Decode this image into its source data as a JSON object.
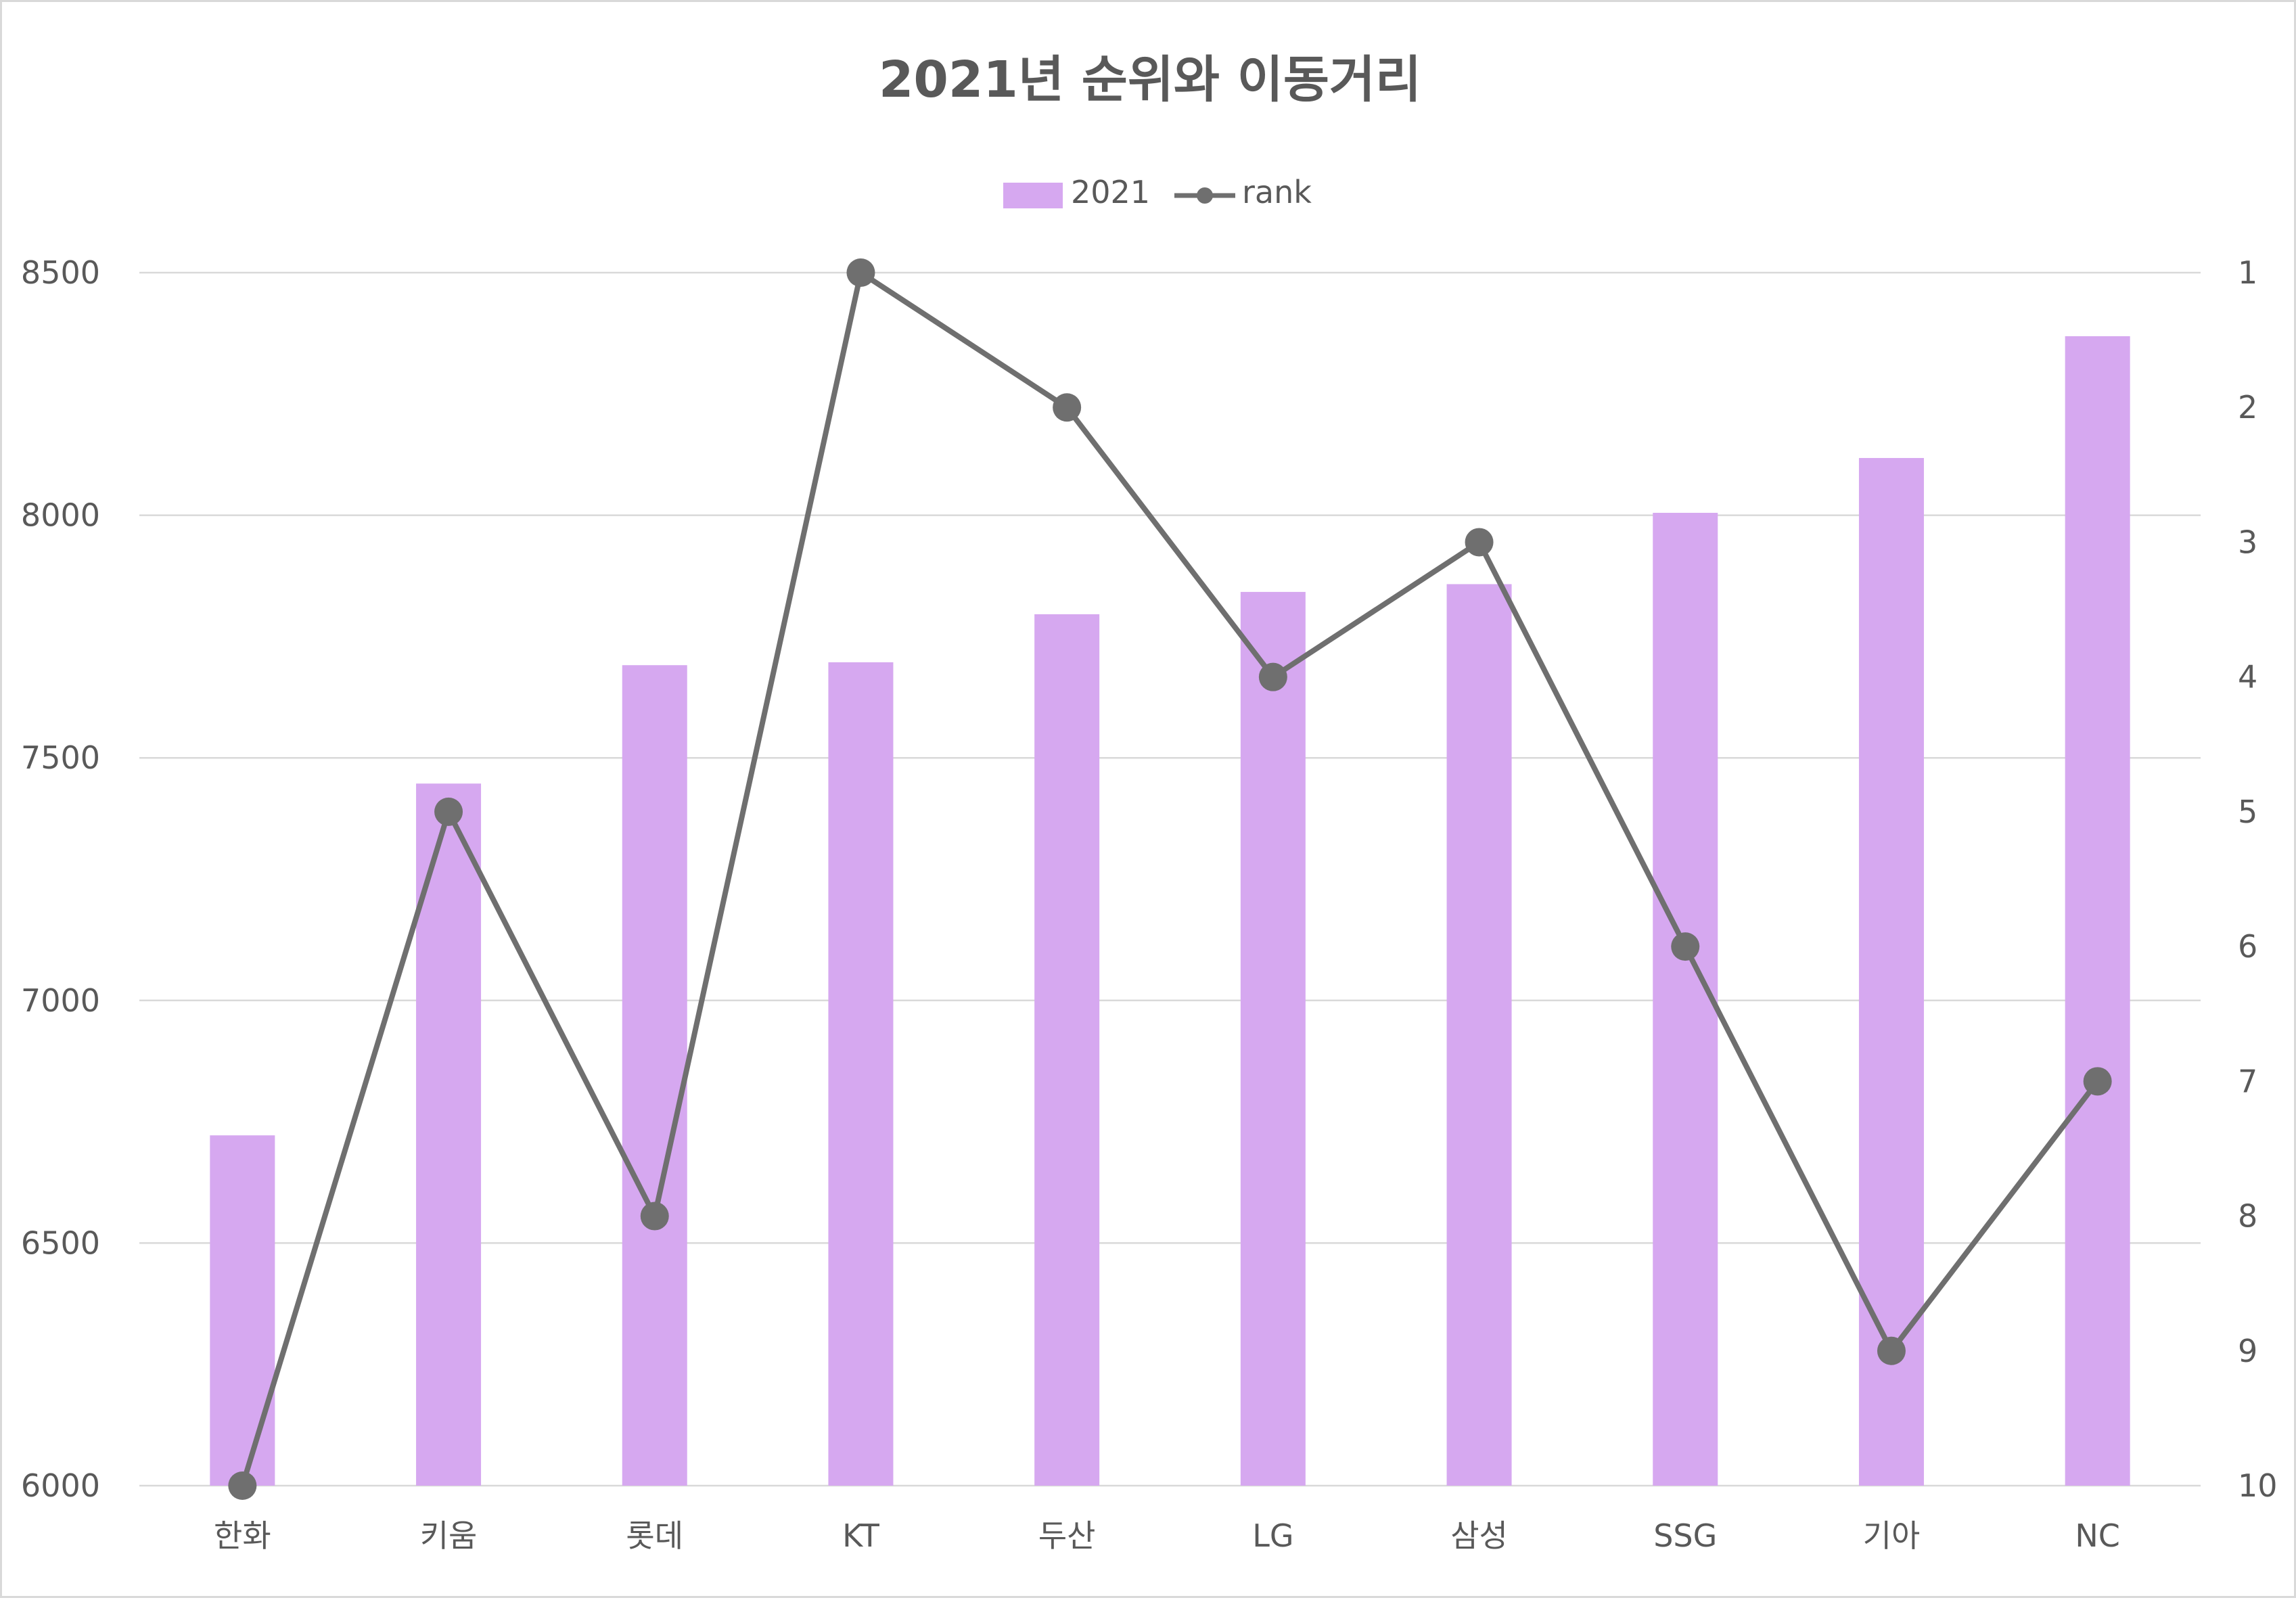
{
  "chart_data": {
    "type": "bar",
    "title": "2021년 순위와 이동거리",
    "categories": [
      "한화",
      "키움",
      "롯데",
      "KT",
      "두산",
      "LG",
      "삼성",
      "SSG",
      "기아",
      "NC"
    ],
    "series": [
      {
        "name": "2021",
        "type": "bar",
        "axis": "left",
        "color": "#d6a8f0",
        "values": [
          6722,
          7447,
          7691,
          7697,
          7796,
          7842,
          7858,
          8005,
          8118,
          8369
        ]
      },
      {
        "name": "rank",
        "type": "line",
        "axis": "right",
        "color": "#6f6f6f",
        "values": [
          10,
          5,
          8,
          1,
          2,
          4,
          3,
          6,
          9,
          7
        ]
      }
    ],
    "left_axis": {
      "min": 6000,
      "max": 8500,
      "ticks": [
        6000,
        6500,
        7000,
        7500,
        8000,
        8500
      ]
    },
    "right_axis": {
      "min": 1,
      "max": 10,
      "reversed": true,
      "ticks": [
        1,
        2,
        3,
        4,
        5,
        6,
        7,
        8,
        9,
        10
      ]
    },
    "grid": true,
    "legend_position": "top-center"
  }
}
